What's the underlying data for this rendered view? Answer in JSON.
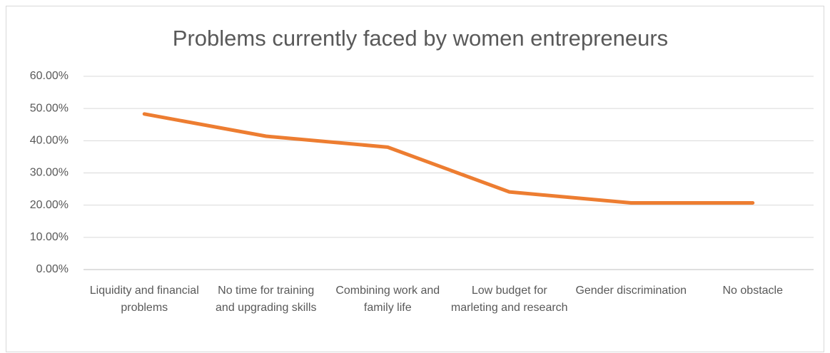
{
  "chart_data": {
    "type": "line",
    "title": "Problems currently faced by women entrepreneurs",
    "categories": [
      "Liquidity and financial problems",
      "No time for training and upgrading skills",
      "Combining work and family life",
      "Low budget for marleting and research",
      "Gender discrimination",
      "No obstacle"
    ],
    "series": [
      {
        "name": "Problems",
        "color": "#ed7d31",
        "values": [
          48.3,
          41.4,
          38.0,
          24.1,
          20.7,
          20.7
        ]
      }
    ],
    "ylim": [
      0,
      60
    ],
    "yticks": [
      {
        "value": 0,
        "label": "0.00%"
      },
      {
        "value": 10,
        "label": "10.00%"
      },
      {
        "value": 20,
        "label": "20.00%"
      },
      {
        "value": 30,
        "label": "30.00%"
      },
      {
        "value": 40,
        "label": "40.00%"
      },
      {
        "value": 50,
        "label": "50.00%"
      },
      {
        "value": 60,
        "label": "60.00%"
      }
    ],
    "grid": true,
    "legend": false
  }
}
